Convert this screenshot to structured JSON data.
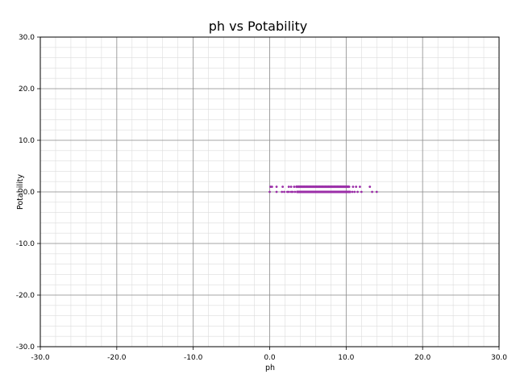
{
  "chart_data": {
    "type": "scatter",
    "title": "ph vs Potability",
    "xlabel": "ph",
    "ylabel": "Potability",
    "xlim": [
      -30,
      30
    ],
    "ylim": [
      -30,
      30
    ],
    "x_ticks": [
      "-30.0",
      "-20.0",
      "-10.0",
      "0.0",
      "10.0",
      "20.0",
      "30.0"
    ],
    "y_ticks": [
      "-30.0",
      "-20.0",
      "-10.0",
      "0.0",
      "10.0",
      "20.0",
      "30.0"
    ],
    "grid": true,
    "minor_grid": true,
    "marker_color": "#9b2ea8",
    "series": [
      {
        "points_y0": {
          "y": 0,
          "x": [
            0.0,
            0.9,
            1.6,
            1.9,
            2.3,
            2.5,
            2.8,
            3.0,
            3.3,
            3.6,
            3.9,
            4.2,
            4.6,
            5.0,
            5.4,
            5.8,
            6.2,
            6.6,
            7.0,
            7.4,
            7.8,
            8.2,
            8.6,
            9.0,
            9.4,
            9.8,
            10.2,
            10.5,
            10.8,
            11.1,
            11.5,
            12.0,
            13.4,
            14.0
          ]
        },
        "points_y1": {
          "y": 1,
          "x": [
            0.1,
            0.3,
            0.9,
            1.7,
            2.5,
            2.8,
            3.2,
            3.5,
            3.8,
            4.1,
            4.5,
            4.9,
            5.3,
            5.7,
            6.1,
            6.5,
            6.9,
            7.3,
            7.7,
            8.1,
            8.5,
            8.9,
            9.3,
            9.7,
            10.1,
            10.4,
            10.9,
            11.3,
            11.8,
            13.1
          ]
        }
      }
    ]
  }
}
